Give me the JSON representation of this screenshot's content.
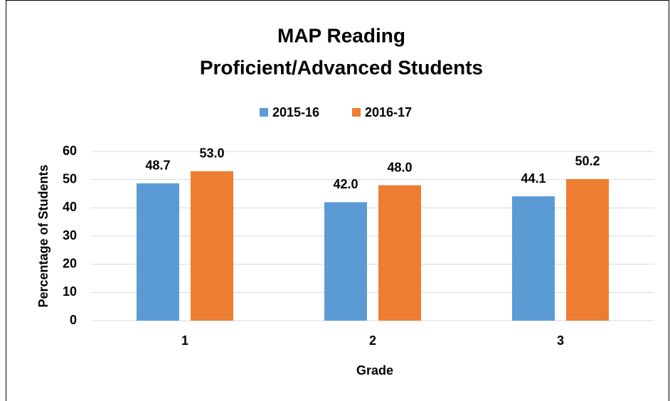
{
  "chart_data": {
    "type": "bar",
    "title": [
      "MAP Reading",
      "Proficient/Advanced Students"
    ],
    "categories": [
      "1",
      "2",
      "3"
    ],
    "series": [
      {
        "name": "2015-16",
        "color": "#5b9bd5",
        "values": [
          48.7,
          42.0,
          44.1
        ],
        "value_labels": [
          "48.7",
          "42.0",
          "44.1"
        ]
      },
      {
        "name": "2016-17",
        "color": "#ed7d31",
        "values": [
          53.0,
          48.0,
          50.2
        ],
        "value_labels": [
          "53.0",
          "48.0",
          "50.2"
        ]
      }
    ],
    "ylim": [
      0,
      60
    ],
    "yticks": [
      0,
      10,
      20,
      30,
      40,
      50,
      60
    ],
    "grid": true,
    "xlabel": "Grade",
    "ylabel": "Percentage of Students",
    "legend": "top"
  }
}
